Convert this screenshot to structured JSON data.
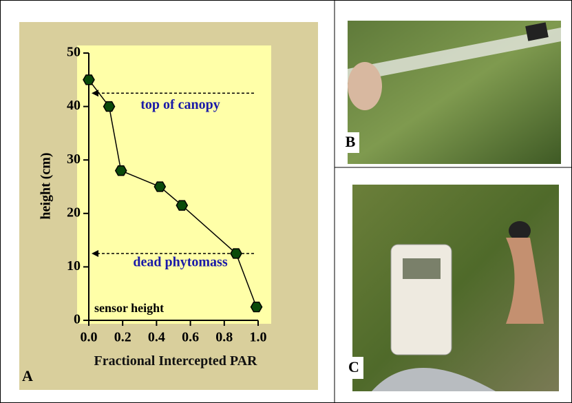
{
  "chart_data": {
    "type": "line",
    "x_label": "Fractional Intercepted PAR",
    "y_label": "height (cm)",
    "x": [
      0.0,
      0.12,
      0.19,
      0.42,
      0.55,
      0.87,
      0.99
    ],
    "series": [
      {
        "color": "#0a4a0a",
        "values": [
          45,
          40,
          28,
          25,
          21.5,
          12.5,
          2.5
        ]
      }
    ],
    "xlim": [
      0,
      1
    ],
    "ylim": [
      0,
      50
    ],
    "xticks": [
      {
        "value": 0,
        "label": "0.0"
      },
      0.2,
      0.4,
      0.6,
      0.8,
      {
        "value": 1,
        "label": "1.0"
      }
    ],
    "yticks": [
      0,
      10,
      20,
      30,
      40,
      50
    ],
    "reference_lines": [
      {
        "label": "top of canopy",
        "y": 42.5
      },
      {
        "label": "dead phytomass",
        "y": 12.5
      }
    ],
    "annotation": "sensor height"
  },
  "panels": [
    "A",
    "B",
    "C"
  ]
}
